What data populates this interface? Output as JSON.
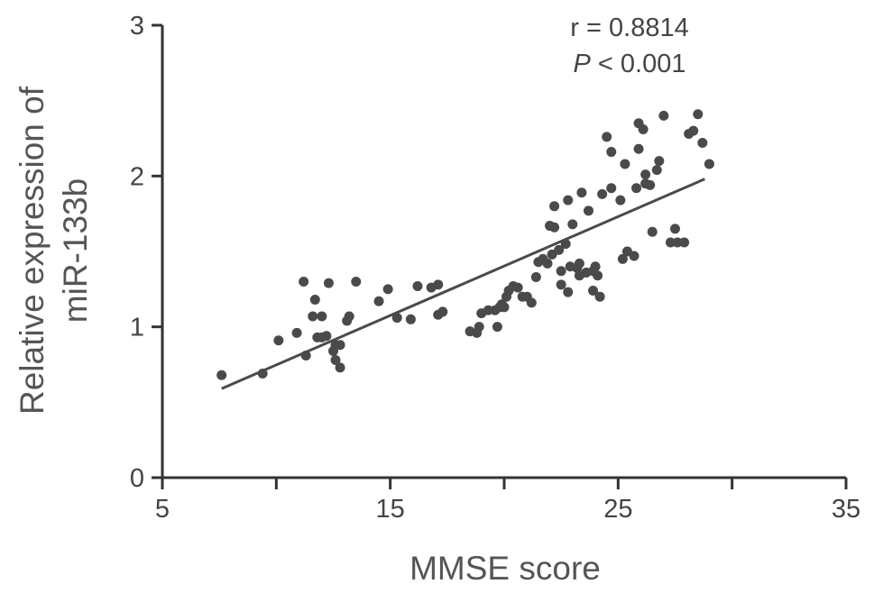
{
  "chart_data": {
    "type": "scatter",
    "xlabel": "MMSE score",
    "ylabel_lines": [
      "Relative expression of",
      "miR-133b"
    ],
    "xlim": [
      5,
      35
    ],
    "ylim": [
      0,
      3
    ],
    "x_ticks": [
      5,
      15,
      25,
      35
    ],
    "x_minor_ticks": [
      10,
      20,
      30
    ],
    "y_ticks": [
      0,
      1,
      2,
      3
    ],
    "annotation": {
      "r_text": "r = 0.8814",
      "p_italic": "P",
      "p_rest": " < 0.001"
    },
    "fit_line": {
      "x": [
        7.6,
        28.8
      ],
      "y": [
        0.59,
        1.98
      ]
    },
    "points": [
      [
        7.6,
        0.68
      ],
      [
        9.4,
        0.69
      ],
      [
        10.1,
        0.91
      ],
      [
        10.9,
        0.96
      ],
      [
        11.2,
        1.3
      ],
      [
        11.3,
        0.81
      ],
      [
        11.6,
        1.07
      ],
      [
        11.7,
        1.18
      ],
      [
        11.8,
        0.93
      ],
      [
        12.0,
        1.07
      ],
      [
        12.0,
        0.93
      ],
      [
        12.2,
        0.94
      ],
      [
        12.3,
        1.29
      ],
      [
        12.5,
        0.84
      ],
      [
        12.6,
        0.88
      ],
      [
        12.6,
        0.78
      ],
      [
        12.8,
        0.88
      ],
      [
        12.8,
        0.73
      ],
      [
        13.1,
        1.04
      ],
      [
        13.2,
        1.07
      ],
      [
        13.5,
        1.3
      ],
      [
        14.5,
        1.17
      ],
      [
        14.9,
        1.25
      ],
      [
        15.3,
        1.06
      ],
      [
        15.9,
        1.05
      ],
      [
        16.2,
        1.27
      ],
      [
        16.8,
        1.26
      ],
      [
        17.1,
        1.28
      ],
      [
        17.1,
        1.08
      ],
      [
        17.3,
        1.1
      ],
      [
        18.5,
        0.97
      ],
      [
        18.8,
        0.96
      ],
      [
        18.9,
        1.0
      ],
      [
        19.0,
        1.09
      ],
      [
        19.3,
        1.11
      ],
      [
        19.6,
        1.11
      ],
      [
        19.7,
        1.0
      ],
      [
        19.8,
        1.13
      ],
      [
        19.9,
        1.15
      ],
      [
        20.0,
        1.13
      ],
      [
        20.1,
        1.2
      ],
      [
        20.2,
        1.24
      ],
      [
        20.4,
        1.27
      ],
      [
        20.6,
        1.26
      ],
      [
        20.8,
        1.2
      ],
      [
        21.0,
        1.2
      ],
      [
        21.2,
        1.16
      ],
      [
        21.4,
        1.33
      ],
      [
        21.5,
        1.43
      ],
      [
        21.7,
        1.45
      ],
      [
        21.9,
        1.42
      ],
      [
        22.0,
        1.67
      ],
      [
        22.1,
        1.48
      ],
      [
        22.2,
        1.8
      ],
      [
        22.2,
        1.66
      ],
      [
        22.4,
        1.51
      ],
      [
        22.5,
        1.37
      ],
      [
        22.5,
        1.28
      ],
      [
        22.7,
        1.55
      ],
      [
        22.8,
        1.84
      ],
      [
        22.8,
        1.23
      ],
      [
        22.9,
        1.4
      ],
      [
        23.0,
        1.68
      ],
      [
        23.2,
        1.39
      ],
      [
        23.3,
        1.42
      ],
      [
        23.3,
        1.34
      ],
      [
        23.4,
        1.89
      ],
      [
        23.6,
        1.36
      ],
      [
        23.7,
        1.77
      ],
      [
        23.9,
        1.37
      ],
      [
        23.9,
        1.24
      ],
      [
        24.0,
        1.4
      ],
      [
        24.1,
        1.34
      ],
      [
        24.2,
        1.2
      ],
      [
        24.3,
        1.88
      ],
      [
        24.5,
        2.26
      ],
      [
        24.7,
        2.16
      ],
      [
        24.7,
        1.92
      ],
      [
        25.1,
        1.84
      ],
      [
        25.2,
        1.45
      ],
      [
        25.3,
        2.08
      ],
      [
        25.4,
        1.5
      ],
      [
        25.7,
        1.47
      ],
      [
        25.8,
        1.92
      ],
      [
        25.9,
        2.18
      ],
      [
        25.9,
        2.35
      ],
      [
        26.1,
        2.31
      ],
      [
        26.2,
        2.01
      ],
      [
        26.2,
        1.95
      ],
      [
        26.4,
        1.94
      ],
      [
        26.5,
        1.63
      ],
      [
        26.7,
        2.04
      ],
      [
        26.8,
        2.1
      ],
      [
        27.0,
        2.4
      ],
      [
        27.3,
        1.56
      ],
      [
        27.5,
        1.65
      ],
      [
        27.6,
        1.56
      ],
      [
        27.9,
        1.56
      ],
      [
        28.1,
        2.28
      ],
      [
        28.3,
        2.3
      ],
      [
        28.5,
        2.41
      ],
      [
        28.7,
        2.22
      ],
      [
        29.0,
        2.08
      ]
    ]
  }
}
